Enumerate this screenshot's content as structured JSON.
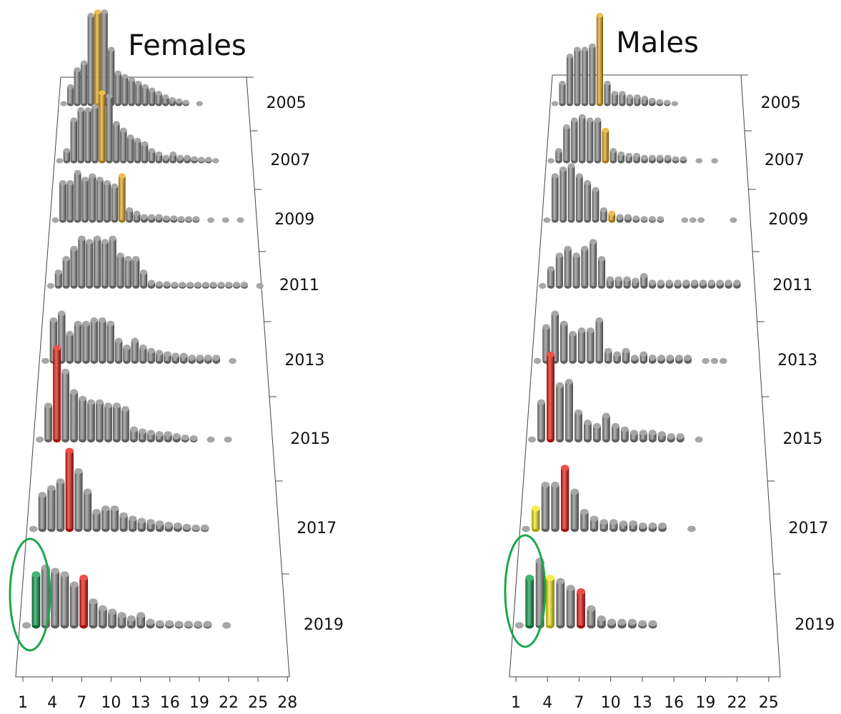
{
  "chart_data": [
    {
      "type": "bar3d",
      "title": "Females",
      "xlim": [
        0.27,
        28.2
      ],
      "xticks": [
        1,
        4,
        7,
        10,
        13,
        16,
        19,
        22,
        25,
        28
      ],
      "x": [
        1,
        2,
        3,
        4,
        5,
        6,
        7,
        8,
        9,
        10,
        11,
        12,
        13,
        14,
        15,
        16,
        17,
        18,
        19,
        20,
        21,
        22,
        23,
        24,
        25,
        26,
        27,
        28
      ],
      "series": [
        {
          "name": "2005",
          "color": "#8a8a8a",
          "values": [
            0,
            25,
            50,
            60,
            130,
            135,
            135,
            80,
            45,
            40,
            35,
            30,
            25,
            20,
            15,
            10,
            6,
            4,
            2,
            null,
            0,
            null,
            null,
            null,
            null,
            null,
            null,
            null
          ],
          "colors": [
            null,
            null,
            null,
            null,
            null,
            "#e6a817",
            null,
            null,
            null,
            null,
            null,
            null,
            null,
            null,
            null,
            null,
            null,
            null,
            null,
            null,
            null,
            null,
            null,
            null,
            null,
            null,
            null,
            null
          ]
        },
        {
          "name": "2007",
          "color": "#8a8a8a",
          "values": [
            0,
            15,
            60,
            75,
            75,
            80,
            100,
            95,
            55,
            45,
            35,
            30,
            25,
            15,
            10,
            5,
            10,
            5,
            5,
            3,
            2,
            2,
            0,
            null,
            null,
            null,
            null,
            null
          ],
          "colors": [
            null,
            null,
            null,
            null,
            null,
            null,
            "#e6a817",
            null,
            null,
            null,
            null,
            null,
            null,
            null,
            null,
            null,
            null,
            null,
            null,
            null,
            null,
            null,
            null,
            null,
            null,
            null,
            null,
            null
          ]
        },
        {
          "name": "2009",
          "color": "#8a8a8a",
          "values": [
            0,
            55,
            55,
            70,
            60,
            65,
            60,
            55,
            50,
            65,
            15,
            10,
            5,
            5,
            5,
            3,
            3,
            2,
            2,
            2,
            null,
            0,
            null,
            0,
            null,
            0,
            null,
            null
          ],
          "colors": [
            null,
            null,
            null,
            null,
            null,
            null,
            null,
            null,
            null,
            "#e6a817",
            null,
            null,
            null,
            null,
            null,
            null,
            null,
            null,
            null,
            null,
            null,
            null,
            null,
            null,
            null,
            null,
            null,
            null
          ]
        },
        {
          "name": "2011",
          "color": "#8a8a8a",
          "values": [
            0,
            20,
            40,
            55,
            70,
            65,
            70,
            65,
            70,
            45,
            40,
            40,
            20,
            5,
            3,
            3,
            2,
            2,
            2,
            2,
            2,
            2,
            2,
            2,
            2,
            2,
            null,
            0
          ],
          "colors": [
            null,
            null,
            null,
            null,
            null,
            null,
            null,
            null,
            null,
            null,
            null,
            null,
            null,
            null,
            null,
            null,
            null,
            null,
            null,
            null,
            null,
            null,
            null,
            null,
            null,
            null,
            null,
            null
          ]
        },
        {
          "name": "2013",
          "color": "#8a8a8a",
          "values": [
            0,
            60,
            70,
            40,
            55,
            55,
            60,
            60,
            55,
            30,
            20,
            30,
            20,
            15,
            12,
            10,
            8,
            8,
            5,
            5,
            5,
            5,
            null,
            0,
            null,
            null,
            null,
            null
          ],
          "colors": [
            null,
            null,
            null,
            null,
            null,
            null,
            null,
            null,
            null,
            null,
            null,
            null,
            null,
            null,
            null,
            null,
            null,
            null,
            null,
            null,
            null,
            null,
            null,
            null,
            null,
            null,
            null,
            null
          ]
        },
        {
          "name": "2015",
          "color": "#8a8a8a",
          "values": [
            0,
            50,
            135,
            100,
            70,
            60,
            55,
            55,
            50,
            50,
            45,
            15,
            12,
            10,
            8,
            8,
            5,
            3,
            2,
            null,
            0,
            null,
            0,
            null,
            null,
            null,
            null,
            null
          ],
          "colors": [
            null,
            null,
            "#e8140c",
            null,
            null,
            null,
            null,
            null,
            null,
            null,
            null,
            null,
            null,
            null,
            null,
            null,
            null,
            null,
            null,
            null,
            null,
            null,
            null,
            null,
            null,
            null,
            null,
            null
          ]
        },
        {
          "name": "2017",
          "color": "#8a8a8a",
          "values": [
            0,
            50,
            60,
            70,
            115,
            85,
            55,
            25,
            30,
            30,
            20,
            15,
            12,
            10,
            8,
            6,
            5,
            3,
            2,
            2,
            null,
            null,
            null,
            null,
            null,
            null,
            null,
            null
          ],
          "colors": [
            null,
            null,
            null,
            null,
            "#e8140c",
            null,
            null,
            null,
            null,
            null,
            null,
            null,
            null,
            null,
            null,
            null,
            null,
            null,
            null,
            null,
            null,
            null,
            null,
            null,
            null,
            null,
            null,
            null
          ]
        },
        {
          "name": "2019",
          "color": "#8a8a8a",
          "values": [
            0,
            75,
            85,
            80,
            75,
            60,
            70,
            35,
            25,
            20,
            15,
            10,
            15,
            5,
            3,
            3,
            2,
            2,
            2,
            2,
            null,
            0,
            null,
            null,
            null,
            null,
            null,
            null
          ],
          "colors": [
            null,
            "#0a9a47",
            null,
            null,
            null,
            null,
            "#e8140c",
            null,
            null,
            null,
            null,
            null,
            null,
            null,
            null,
            null,
            null,
            null,
            null,
            null,
            null,
            null,
            null,
            null,
            null,
            null,
            null,
            null
          ]
        }
      ]
    },
    {
      "type": "bar3d",
      "title": "Males",
      "xlim": [
        0.39,
        26.1
      ],
      "xticks": [
        1,
        4,
        7,
        10,
        13,
        16,
        19,
        22,
        25
      ],
      "x": [
        1,
        2,
        3,
        4,
        5,
        6,
        7,
        8,
        9,
        10,
        11,
        12,
        13,
        14,
        15,
        16,
        17,
        18,
        19,
        20,
        21,
        22,
        23,
        24,
        25
      ],
      "series": [
        {
          "name": "2005",
          "color": "#8a8a8a",
          "values": [
            0,
            30,
            70,
            80,
            80,
            85,
            130,
            30,
            15,
            15,
            10,
            10,
            8,
            5,
            3,
            2,
            0,
            null,
            null,
            null,
            null,
            null,
            null,
            null,
            null
          ],
          "colors": [
            null,
            null,
            null,
            null,
            null,
            null,
            "#e6a817",
            null,
            null,
            null,
            null,
            null,
            null,
            null,
            null,
            null,
            null,
            null,
            null,
            null,
            null,
            null,
            null,
            null,
            null
          ]
        },
        {
          "name": "2007",
          "color": "#8a8a8a",
          "values": [
            0,
            15,
            50,
            60,
            65,
            60,
            60,
            45,
            15,
            10,
            8,
            8,
            5,
            5,
            5,
            5,
            3,
            3,
            null,
            0,
            null,
            0,
            null,
            null,
            null
          ],
          "colors": [
            null,
            null,
            null,
            null,
            null,
            null,
            null,
            "#e6a817",
            null,
            null,
            null,
            null,
            null,
            null,
            null,
            null,
            null,
            null,
            null,
            null,
            null,
            null,
            null,
            null,
            null
          ]
        },
        {
          "name": "2009",
          "color": "#8a8a8a",
          "values": [
            0,
            65,
            75,
            80,
            65,
            55,
            45,
            15,
            10,
            5,
            5,
            3,
            2,
            2,
            2,
            null,
            null,
            0,
            0,
            0,
            null,
            null,
            null,
            0,
            null
          ],
          "colors": [
            null,
            null,
            null,
            null,
            null,
            null,
            null,
            null,
            "#e6a817",
            null,
            null,
            null,
            null,
            null,
            null,
            null,
            null,
            null,
            null,
            null,
            null,
            null,
            null,
            null,
            null
          ]
        },
        {
          "name": "2011",
          "color": "#8a8a8a",
          "values": [
            0,
            25,
            45,
            55,
            45,
            55,
            65,
            40,
            10,
            10,
            10,
            8,
            15,
            5,
            5,
            5,
            5,
            5,
            5,
            5,
            5,
            5,
            5,
            5,
            null
          ],
          "colors": [
            null,
            null,
            null,
            null,
            null,
            null,
            null,
            null,
            null,
            null,
            null,
            null,
            null,
            null,
            null,
            null,
            null,
            null,
            null,
            null,
            null,
            null,
            null,
            null,
            null
          ]
        },
        {
          "name": "2013",
          "color": "#8a8a8a",
          "values": [
            0,
            50,
            70,
            55,
            40,
            45,
            45,
            60,
            15,
            10,
            15,
            5,
            10,
            5,
            5,
            5,
            5,
            5,
            null,
            0,
            0,
            0,
            null,
            null,
            null
          ],
          "colors": [
            null,
            null,
            null,
            null,
            null,
            null,
            null,
            null,
            null,
            null,
            null,
            null,
            null,
            null,
            null,
            null,
            null,
            null,
            null,
            null,
            null,
            null,
            null,
            null,
            null
          ]
        },
        {
          "name": "2015",
          "color": "#8a8a8a",
          "values": [
            0,
            55,
            125,
            80,
            85,
            40,
            25,
            20,
            35,
            20,
            15,
            10,
            10,
            10,
            8,
            5,
            5,
            null,
            0,
            null,
            null,
            null,
            null,
            null,
            null
          ],
          "colors": [
            null,
            null,
            "#e8140c",
            null,
            null,
            null,
            null,
            null,
            null,
            null,
            null,
            null,
            null,
            null,
            null,
            null,
            null,
            null,
            null,
            null,
            null,
            null,
            null,
            null,
            null
          ]
        },
        {
          "name": "2017",
          "color": "#8a8a8a",
          "values": [
            0,
            30,
            65,
            65,
            90,
            55,
            25,
            15,
            10,
            10,
            8,
            8,
            5,
            5,
            5,
            null,
            null,
            0,
            null,
            null,
            null,
            null,
            null,
            null,
            null
          ],
          "colors": [
            null,
            "#f5ea14",
            null,
            null,
            "#e8140c",
            null,
            null,
            null,
            null,
            null,
            null,
            null,
            null,
            null,
            null,
            null,
            null,
            null,
            null,
            null,
            null,
            null,
            null,
            null,
            null
          ]
        },
        {
          "name": "2019",
          "color": "#8a8a8a",
          "values": [
            0,
            70,
            95,
            70,
            65,
            55,
            50,
            25,
            10,
            5,
            5,
            5,
            3,
            3,
            null,
            null,
            null,
            null,
            null,
            null,
            null,
            null,
            null,
            null,
            null
          ],
          "colors": [
            null,
            "#0a9a47",
            null,
            "#f5ea14",
            null,
            null,
            "#e8140c",
            null,
            null,
            null,
            null,
            null,
            null,
            null,
            null,
            null,
            null,
            null,
            null,
            null,
            null,
            null,
            null,
            null,
            null
          ]
        }
      ]
    }
  ]
}
